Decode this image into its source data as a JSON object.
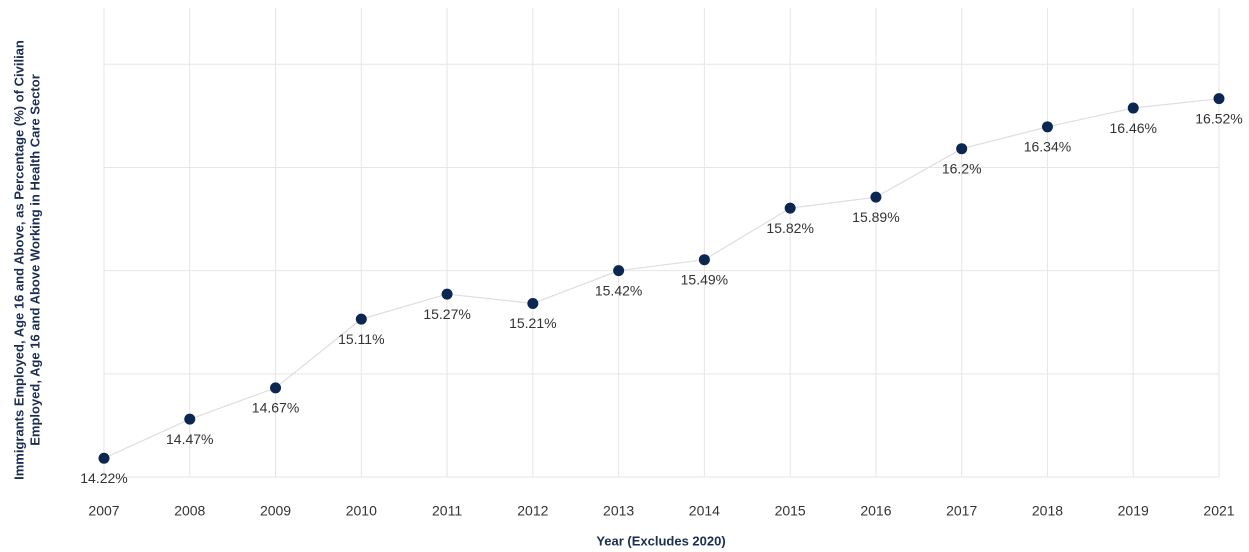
{
  "chart_data": {
    "type": "line",
    "xlabel": "Year (Excludes 2020)",
    "ylabel": [
      "Immigrants Employed, Age 16 and Above, as Percentage (%) of Civilian",
      "Employed, Age 16 and Above Working in Health Care Sector"
    ],
    "categories": [
      "2007",
      "2008",
      "2009",
      "2010",
      "2011",
      "2012",
      "2013",
      "2014",
      "2015",
      "2016",
      "2017",
      "2018",
      "2019",
      "2021"
    ],
    "series": [
      {
        "color": "#0b2650",
        "line_color": "#dedede",
        "values": [
          14.22,
          14.47,
          14.67,
          15.11,
          15.27,
          15.21,
          15.42,
          15.49,
          15.82,
          15.89,
          16.2,
          16.34,
          16.46,
          16.52
        ],
        "value_labels": [
          "14.22%",
          "14.47%",
          "14.67%",
          "15.11%",
          "15.27%",
          "15.21%",
          "15.42%",
          "15.49%",
          "15.82%",
          "15.89%",
          "16.2%",
          "16.34%",
          "16.46%",
          "16.52%"
        ]
      }
    ],
    "ylim": [
      14.1,
      17.1
    ],
    "yticks": [
      14.1,
      14.76,
      15.42,
      16.08,
      16.74
    ],
    "grid": true
  }
}
